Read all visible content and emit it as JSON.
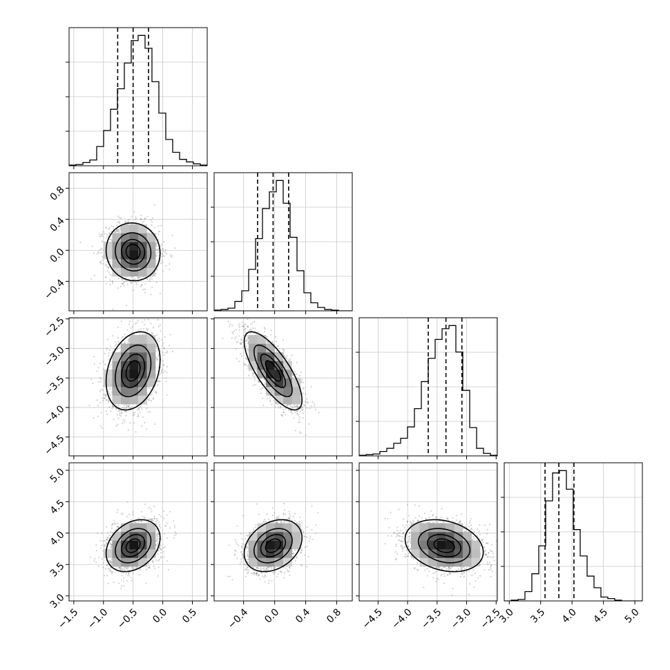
{
  "chart_data": {
    "type": "corner",
    "parameters": [
      {
        "index": 0,
        "mean": -0.5,
        "sd": 0.22,
        "quantiles": [
          -0.76,
          -0.5,
          -0.24
        ],
        "range": [
          -1.58,
          0.75
        ],
        "ticks": [
          -1.5,
          -1.0,
          -0.5,
          0.0,
          0.5
        ],
        "tick_labels": [
          "−1.5",
          "−1.0",
          "−0.5",
          "0.0",
          "0.5"
        ],
        "hist_counts": [
          1,
          2,
          5,
          9,
          30,
          55,
          88,
          120,
          160,
          195,
          203,
          183,
          131,
          82,
          41,
          21,
          10,
          6,
          3,
          1
        ]
      },
      {
        "index": 1,
        "mean": -0.02,
        "sd": 0.18,
        "quantiles": [
          -0.22,
          -0.02,
          0.18
        ],
        "range": [
          -0.78,
          1.0
        ],
        "ticks": [
          -0.4,
          0.0,
          0.4,
          0.8
        ],
        "tick_labels": [
          "−0.4",
          "0.0",
          "0.4",
          "0.8"
        ],
        "hist_counts": [
          1,
          2,
          4,
          14,
          30,
          62,
          108,
          153,
          178,
          195,
          161,
          110,
          60,
          27,
          12,
          5,
          2,
          1,
          0,
          0
        ]
      },
      {
        "index": 2,
        "mean": -3.38,
        "sd": 0.32,
        "quantiles": [
          -3.65,
          -3.35,
          -3.08
        ],
        "range": [
          -4.82,
          -2.48
        ],
        "ticks": [
          -4.5,
          -4.0,
          -3.5,
          -3.0,
          -2.5
        ],
        "tick_labels": [
          "−4.5",
          "−4.0",
          "−3.5",
          "−3.0",
          "−2.5"
        ],
        "hist_counts": [
          1,
          2,
          3,
          7,
          12,
          20,
          28,
          46,
          75,
          118,
          155,
          185,
          202,
          207,
          165,
          104,
          45,
          12,
          4,
          1
        ]
      },
      {
        "index": 3,
        "mean": 3.8,
        "sd": 0.2,
        "quantiles": [
          3.57,
          3.79,
          4.03
        ],
        "range": [
          2.92,
          5.12
        ],
        "ticks": [
          3.0,
          3.5,
          4.0,
          4.5,
          5.0
        ],
        "tick_labels": [
          "3.0",
          "3.5",
          "4.0",
          "4.5",
          "5.0"
        ],
        "hist_counts": [
          0,
          1,
          2,
          12,
          35,
          71,
          129,
          165,
          168,
          144,
          92,
          58,
          32,
          17,
          5,
          3,
          1,
          0,
          0,
          0
        ]
      }
    ],
    "correlations": {
      "1-0": -0.05,
      "2-0": 0.28,
      "2-1": -0.75,
      "3-0": 0.3,
      "3-1": 0.3,
      "3-2": -0.25
    },
    "contour_levels_sigma": [
      0.5,
      1.0,
      1.5,
      2.0
    ],
    "grid": true,
    "points_per_panel": 1800
  }
}
